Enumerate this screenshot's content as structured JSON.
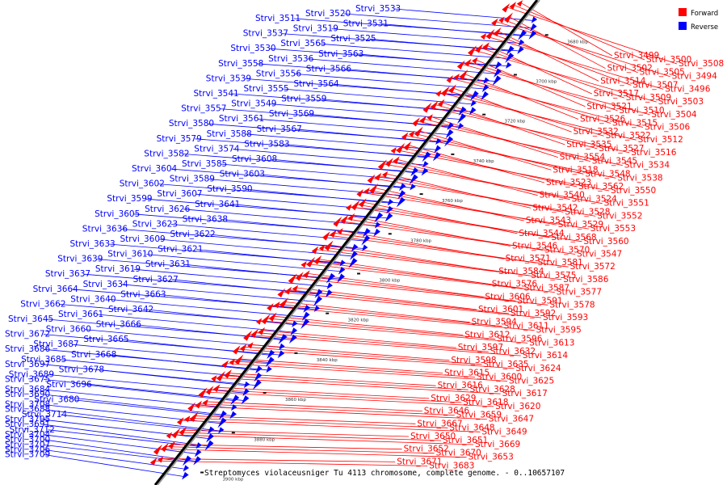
{
  "caption": "Streptomyces violaceusniger Tu 4113 chromosome, complete genome. - 0..10657107",
  "legend": [
    {
      "label": "Forward",
      "color": "#ff0000"
    },
    {
      "label": "Reverse",
      "color": "#0000ff"
    }
  ],
  "colors": {
    "forward": "#ff0000",
    "reverse": "#0000ff",
    "axis": "#000000",
    "axis_shadow": "#999999"
  },
  "ticks": [
    "3680 kbp",
    "3700 kbp",
    "3720 kbp",
    "3740 kbp",
    "3760 kbp",
    "3780 kbp",
    "3800 kbp",
    "3820 kbp",
    "3840 kbp",
    "3860 kbp",
    "3880 kbp",
    "3900 kbp"
  ],
  "reverse_genes": [
    "Strvi_3533",
    "Strvi_3520",
    "Strvi_3511",
    "Strvi_3531",
    "Strvi_3519",
    "Strvi_3537",
    "Strvi_3525",
    "Strvi_3565",
    "Strvi_3530",
    "Strvi_3563",
    "Strvi_3536",
    "Strvi_3558",
    "Strvi_3566",
    "Strvi_3556",
    "Strvi_3539",
    "Strvi_3564",
    "Strvi_3555",
    "Strvi_3541",
    "Strvi_3559",
    "Strvi_3549",
    "Strvi_3557",
    "Strvi_3569",
    "Strvi_3561",
    "Strvi_3580",
    "Strvi_3567",
    "Strvi_3588",
    "Strvi_3579",
    "Strvi_3583",
    "Strvi_3574",
    "Strvi_3582",
    "Strvi_3608",
    "Strvi_3585",
    "Strvi_3604",
    "Strvi_3603",
    "Strvi_3589",
    "Strvi_3602",
    "Strvi_3590",
    "Strvi_3607",
    "Strvi_3599",
    "Strvi_3641",
    "Strvi_3626",
    "Strvi_3605",
    "Strvi_3638",
    "Strvi_3623",
    "Strvi_3636",
    "Strvi_3622",
    "Strvi_3609",
    "Strvi_3633",
    "Strvi_3621",
    "Strvi_3610",
    "Strvi_3639",
    "Strvi_3631",
    "Strvi_3619",
    "Strvi_3637",
    "Strvi_3627",
    "Strvi_3634",
    "Strvi_3664",
    "Strvi_3663",
    "Strvi_3640",
    "Strvi_3662",
    "Strvi_3642",
    "Strvi_3661",
    "Strvi_3645",
    "Strvi_3666",
    "Strvi_3660",
    "Strvi_3672",
    "Strvi_3665",
    "Strvi_3687",
    "Strvi_3686",
    "Strvi_3668",
    "Strvi_3685",
    "Strvi_3697",
    "Strvi_3678",
    "Strvi_3689",
    "Strvi_3675",
    "Strvi_3696",
    "Strvi_3684",
    "Strvi_3690",
    "Strvi_3680",
    "Strvi_3708",
    "Strvi_3688",
    "Strvi_3714",
    "Strvi_3705",
    "Strvi_3691",
    "Strvi_3712",
    "Strvi_3704",
    "Strvi_3700",
    "Strvi_3707",
    "Strvi_3706",
    "Strvi_3709"
  ],
  "forward_genes": [
    "Strvi_3499",
    "Strvi_3500",
    "Strvi_3508",
    "Strvi_3502",
    "Strvi_3505",
    "Strvi_3494",
    "Strvi_3514",
    "Strvi_3507",
    "Strvi_3496",
    "Strvi_3517",
    "Strvi_3509",
    "Strvi_3503",
    "Strvi_3521",
    "Strvi_3510",
    "Strvi_3504",
    "Strvi_3526",
    "Strvi_3515",
    "Strvi_3506",
    "Strvi_3532",
    "Strvi_3522",
    "Strvi_3512",
    "Strvi_3535",
    "Strvi_3527",
    "Strvi_3516",
    "Strvi_3554",
    "Strvi_3545",
    "Strvi_3534",
    "Strvi_3518",
    "Strvi_3548",
    "Strvi_3538",
    "Strvi_3523",
    "Strvi_3562",
    "Strvi_3550",
    "Strvi_3540",
    "Strvi_3524",
    "Strvi_3551",
    "Strvi_3542",
    "Strvi_3528",
    "Strvi_3552",
    "Strvi_3543",
    "Strvi_3529",
    "Strvi_3553",
    "Strvi_3544",
    "Strvi_3568",
    "Strvi_3560",
    "Strvi_3546",
    "Strvi_3570",
    "Strvi_3547",
    "Strvi_3571",
    "Strvi_3581",
    "Strvi_3572",
    "Strvi_3584",
    "Strvi_3575",
    "Strvi_3586",
    "Strvi_3576",
    "Strvi_3587",
    "Strvi_3577",
    "Strvi_3606",
    "Strvi_3591",
    "Strvi_3578",
    "Strvi_3601",
    "Strvi_3592",
    "Strvi_3593",
    "Strvi_3594",
    "Strvi_3611",
    "Strvi_3595",
    "Strvi_3612",
    "Strvi_3596",
    "Strvi_3613",
    "Strvi_3597",
    "Strvi_3632",
    "Strvi_3614",
    "Strvi_3598",
    "Strvi_3635",
    "Strvi_3624",
    "Strvi_3615",
    "Strvi_3600",
    "Strvi_3625",
    "Strvi_3616",
    "Strvi_3628",
    "Strvi_3617",
    "Strvi_3629",
    "Strvi_3618",
    "Strvi_3620",
    "Strvi_3646",
    "Strvi_3659",
    "Strvi_3647",
    "Strvi_3667",
    "Strvi_3648",
    "Strvi_3649",
    "Strvi_3650",
    "Strvi_3651",
    "Strvi_3669",
    "Strvi_3652",
    "Strvi_3670",
    "Strvi_3653",
    "Strvi_3671",
    "Strvi_3683"
  ]
}
